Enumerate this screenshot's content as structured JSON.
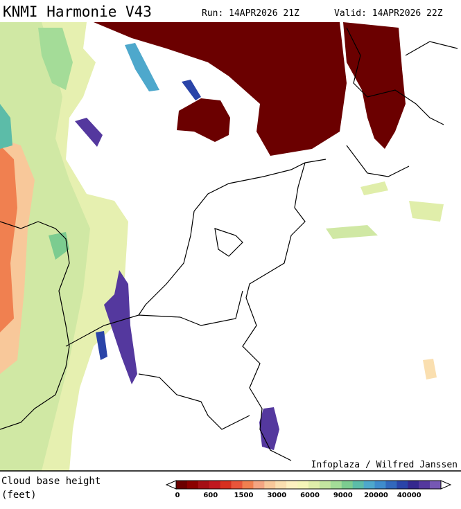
{
  "header": {
    "title": "KNMI Harmonie V43",
    "run": "Run: 14APR2026 21Z",
    "valid": "Valid: 14APR2026 22Z"
  },
  "map": {
    "credit": "Infoplaza / Wilfred Janssen"
  },
  "legend": {
    "title": "Cloud base height",
    "unit": "(feet)",
    "colors": [
      "#6b0000",
      "#8b0000",
      "#a50f15",
      "#c0181f",
      "#d7301f",
      "#e8553a",
      "#f08050",
      "#f4a582",
      "#f8c89a",
      "#fadfb0",
      "#fdf0c0",
      "#f5f5b8",
      "#e0eeaa",
      "#c4e6a0",
      "#a4dc98",
      "#7ccc90",
      "#5cbca8",
      "#4ea8cc",
      "#3f8ccc",
      "#3268bc",
      "#2a44a8",
      "#34288e",
      "#54389e",
      "#7658b4"
    ],
    "labels": [
      0,
      600,
      1500,
      3000,
      6000,
      9000,
      20000,
      40000
    ]
  }
}
